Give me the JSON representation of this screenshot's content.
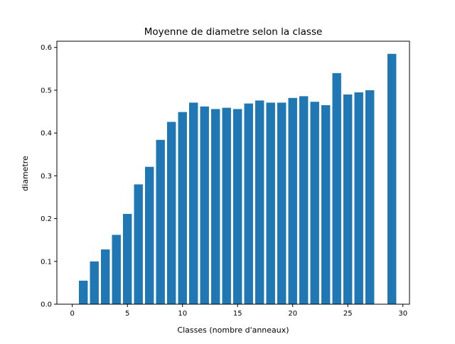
{
  "chart_data": {
    "type": "bar",
    "title": "Moyenne de diametre selon la classe",
    "xlabel": "Classes (nombre d'anneaux)",
    "ylabel": "diametre",
    "x": [
      1,
      2,
      3,
      4,
      5,
      6,
      7,
      8,
      9,
      10,
      11,
      12,
      13,
      14,
      15,
      16,
      17,
      18,
      19,
      20,
      21,
      22,
      23,
      24,
      25,
      26,
      27,
      29
    ],
    "values": [
      0.055,
      0.1,
      0.128,
      0.162,
      0.211,
      0.28,
      0.321,
      0.384,
      0.426,
      0.449,
      0.471,
      0.462,
      0.456,
      0.459,
      0.456,
      0.469,
      0.476,
      0.471,
      0.471,
      0.482,
      0.486,
      0.473,
      0.465,
      0.54,
      0.49,
      0.495,
      0.5,
      0.585
    ],
    "xlim": [
      -1.4,
      30.6
    ],
    "ylim": [
      0,
      0.6145
    ],
    "xticks": [
      0,
      5,
      10,
      15,
      20,
      25,
      30
    ],
    "yticks": [
      0.0,
      0.1,
      0.2,
      0.3,
      0.4,
      0.5,
      0.6
    ],
    "xtick_labels": [
      "0",
      "5",
      "10",
      "15",
      "20",
      "25",
      "30"
    ],
    "ytick_labels": [
      "0.0",
      "0.1",
      "0.2",
      "0.3",
      "0.4",
      "0.5",
      "0.6"
    ],
    "bar_width": 0.8,
    "bar_color": "#1f77b4",
    "grid": false,
    "legend": "none"
  }
}
